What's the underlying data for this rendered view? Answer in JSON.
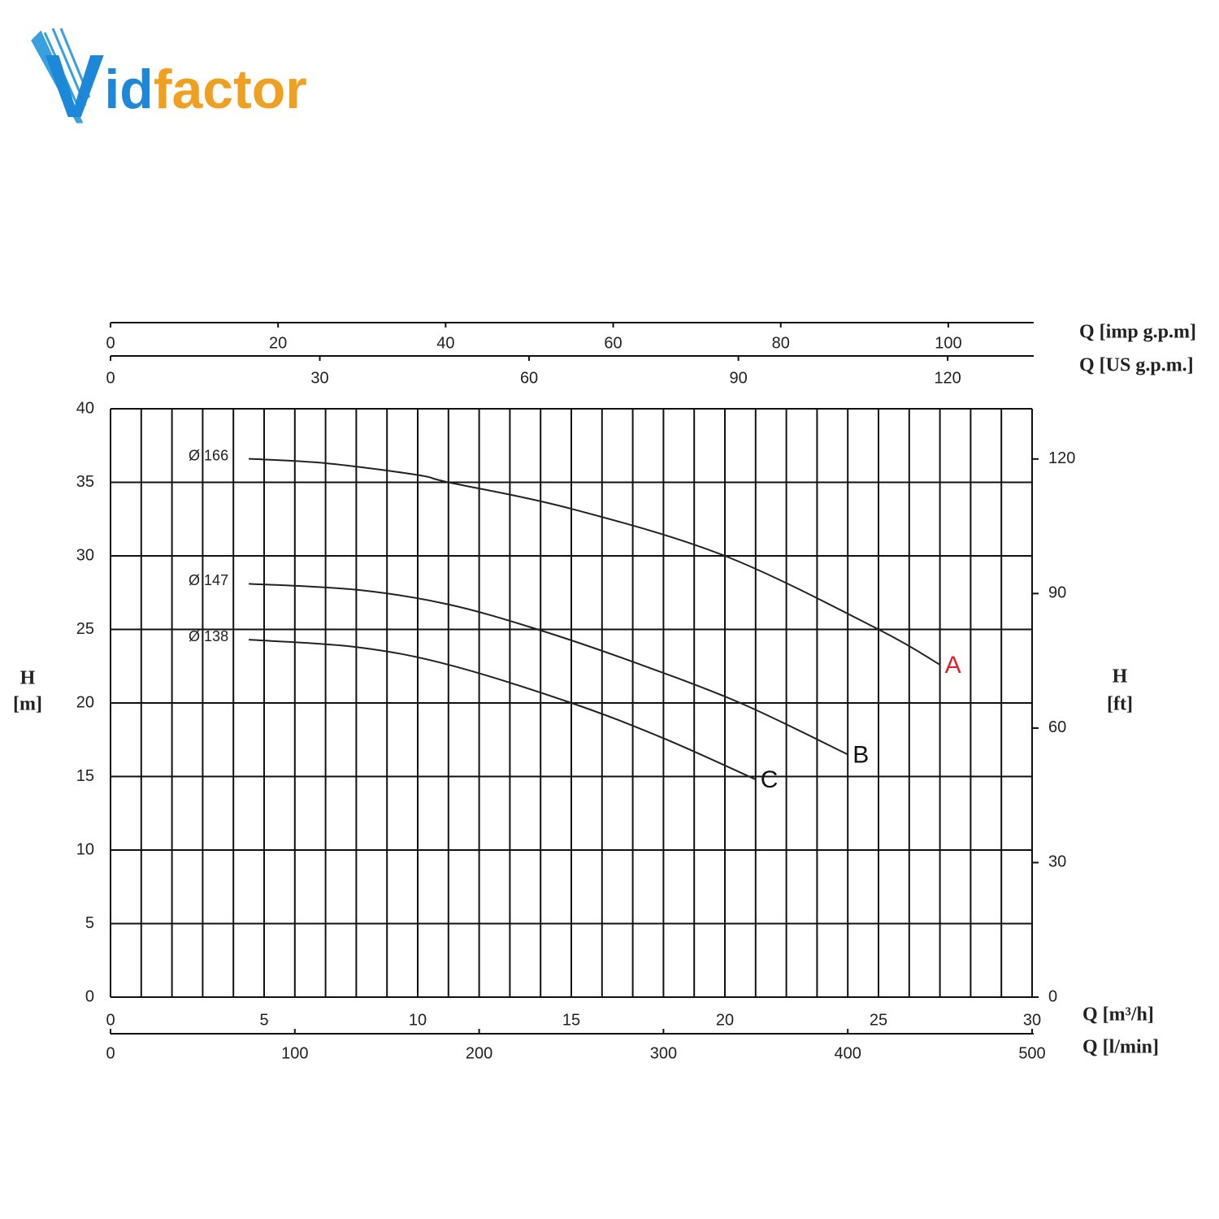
{
  "logo": [
    "V",
    "id",
    "factor"
  ],
  "chart_data": {
    "type": "line",
    "xlabel": "Q [m³/h]",
    "ylabel": [
      "H",
      "[m]"
    ],
    "y2label": [
      "H",
      "[ft]"
    ],
    "xlim": [
      0,
      30
    ],
    "xticks": [
      0,
      5,
      10,
      15,
      20,
      25,
      30
    ],
    "x_gridlines": [
      0,
      1,
      2,
      3,
      4,
      5,
      6,
      7,
      8,
      9,
      10,
      11,
      12,
      13,
      14,
      15,
      16,
      17,
      18,
      19,
      20,
      21,
      22,
      23,
      24,
      25,
      26,
      27,
      28,
      29,
      30
    ],
    "ylim": [
      0,
      40
    ],
    "yticks": [
      0,
      5,
      10,
      15,
      20,
      25,
      30,
      35,
      40
    ],
    "grid": true,
    "y2lim": [
      0,
      131.2
    ],
    "y2ticks": [
      0,
      30,
      60,
      90,
      120
    ],
    "secondary_x_axes": [
      {
        "position": "top",
        "label": "Q [imp g.p.m]",
        "lim": [
          0,
          110.0
        ],
        "ticks": [
          0,
          20,
          40,
          60,
          80,
          100
        ]
      },
      {
        "position": "top",
        "label": "Q [US g.p.m.]",
        "lim": [
          0,
          132.1
        ],
        "ticks": [
          0,
          30,
          60,
          90,
          120
        ]
      },
      {
        "position": "bottom",
        "label": "Q [l/min]",
        "lim": [
          0,
          500
        ],
        "ticks": [
          0,
          100,
          200,
          300,
          400,
          500
        ]
      }
    ],
    "series": [
      {
        "name": "Ø 166",
        "label": "A",
        "color": "#222222",
        "label_color": "#e0202a",
        "x": [
          4.5,
          7,
          10,
          11,
          15,
          20,
          25,
          27
        ],
        "values": [
          36.6,
          36.3,
          35.5,
          35.0,
          33.2,
          30.0,
          25.0,
          22.6
        ]
      },
      {
        "name": "Ø 147",
        "label": "B",
        "color": "#222222",
        "label_color": "#111111",
        "x": [
          4.5,
          8,
          11,
          13.9,
          17,
          20.5,
          24
        ],
        "values": [
          28.1,
          27.7,
          26.7,
          25.0,
          22.8,
          20.0,
          16.5
        ]
      },
      {
        "name": "Ø 138",
        "label": "C",
        "color": "#222222",
        "label_color": "#111111",
        "x": [
          4.5,
          8,
          11,
          15,
          18,
          21
        ],
        "values": [
          24.3,
          23.8,
          22.6,
          20.0,
          17.6,
          14.8
        ]
      }
    ]
  }
}
